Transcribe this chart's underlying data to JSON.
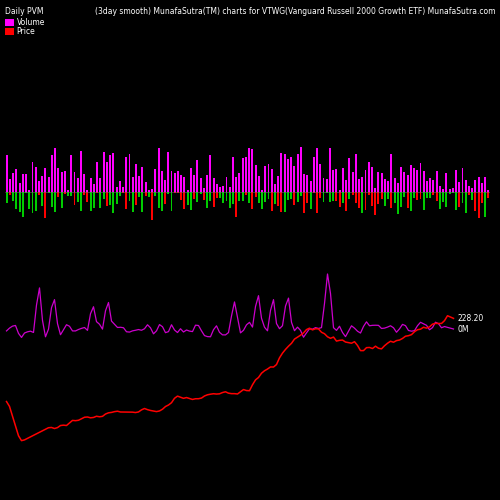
{
  "title_left": "Daily PVM",
  "title_center": "(3day smooth) MunafaSutra(TM) charts for VTWG",
  "title_right": "(Vanguard Russell 2000 Growth ETF) MunafaSutra.com",
  "legend_volume_color": "#ff00ff",
  "legend_price_color": "#ff0000",
  "legend_volume_label": "Volume",
  "legend_price_label": "Price",
  "background_color": "#000000",
  "n_bars": 150,
  "label_volume": "0M",
  "label_price": "228.20",
  "label_color": "#ffffff",
  "line_volume_color": "#cc00cc",
  "line_price_color": "#ff0000",
  "bar_magenta_color": "#ff00ff",
  "bar_green_color": "#00cc00",
  "bar_red_color": "#ff0000"
}
